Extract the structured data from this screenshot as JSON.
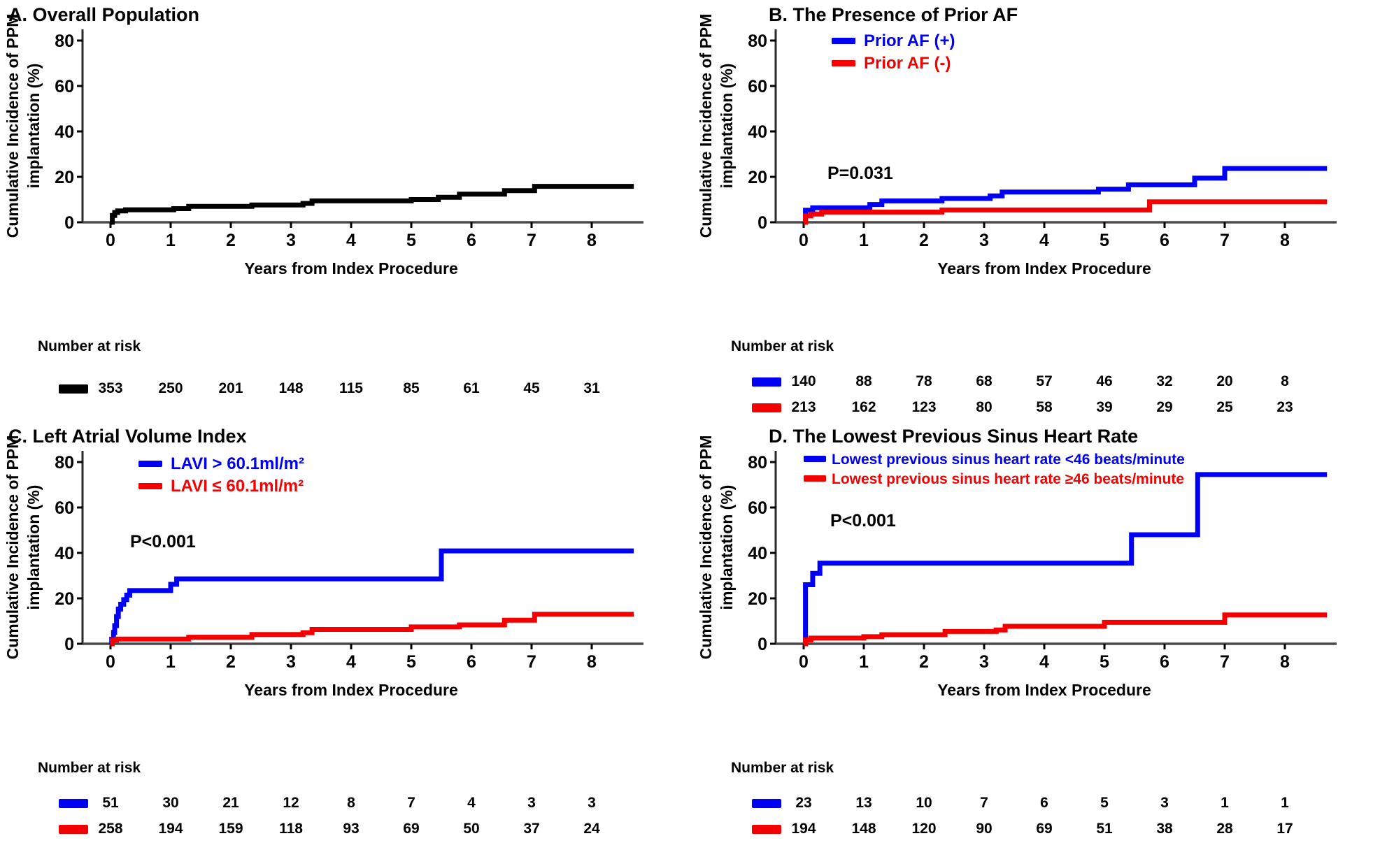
{
  "figure": {
    "ylabel_line1": "Cumulative Incidence of PPM",
    "ylabel_line2": "implantation (%)",
    "xlabel": "Years from Index Procedure",
    "risk_header": "Number at risk",
    "colors": {
      "blue": "#0000F5",
      "red": "#F50000",
      "black": "#000000"
    }
  },
  "chart_data": [
    {
      "type": "line",
      "title": "A. Overall Population",
      "xlabel": "Years from Index Procedure",
      "ylabel": "Cumulative Incidence of PPM implantation (%)",
      "xlim": [
        0,
        8.7
      ],
      "ylim": [
        0,
        80
      ],
      "xticks": [
        0,
        1,
        2,
        3,
        4,
        5,
        6,
        7,
        8
      ],
      "yticks": [
        0,
        20,
        40,
        60,
        80
      ],
      "grid": false,
      "legend": [],
      "pvalue": "",
      "series": [
        {
          "name": "Overall population",
          "color": "#000000",
          "end": 8.7,
          "risk": [
            353,
            250,
            201,
            148,
            115,
            85,
            61,
            45,
            31
          ],
          "steps": [
            [
              0,
              0
            ],
            [
              0.03,
              3
            ],
            [
              0.07,
              4.3
            ],
            [
              0.12,
              5
            ],
            [
              0.25,
              5.5
            ],
            [
              1.05,
              6
            ],
            [
              1.3,
              7
            ],
            [
              2.35,
              7.6
            ],
            [
              3.2,
              8.3
            ],
            [
              3.35,
              9.4
            ],
            [
              5.0,
              10
            ],
            [
              5.45,
              11
            ],
            [
              5.8,
              12.4
            ],
            [
              6.55,
              13.9
            ],
            [
              7.05,
              15.8
            ]
          ]
        }
      ]
    },
    {
      "type": "line",
      "title": "B. The Presence of Prior AF",
      "xlabel": "Years from Index Procedure",
      "ylabel": "Cumulative Incidence of PPM implantation (%)",
      "xlim": [
        0,
        8.7
      ],
      "ylim": [
        0,
        80
      ],
      "xticks": [
        0,
        1,
        2,
        3,
        4,
        5,
        6,
        7,
        8
      ],
      "yticks": [
        0,
        20,
        40,
        60,
        80
      ],
      "grid": false,
      "legend": [
        {
          "label": "Prior AF (+)",
          "color": "#0000F5"
        },
        {
          "label": "Prior AF (-)",
          "color": "#F50000"
        }
      ],
      "pvalue": "P=0.031",
      "series": [
        {
          "name": "Prior AF (+)",
          "color": "#0000F5",
          "end": 8.7,
          "risk": [
            140,
            88,
            78,
            68,
            57,
            46,
            32,
            20,
            8
          ],
          "steps": [
            [
              0,
              0
            ],
            [
              0.03,
              5.3
            ],
            [
              0.15,
              6.4
            ],
            [
              1.1,
              7.8
            ],
            [
              1.3,
              9.4
            ],
            [
              2.3,
              10.5
            ],
            [
              3.1,
              11.6
            ],
            [
              3.3,
              13.3
            ],
            [
              4.9,
              14.6
            ],
            [
              5.4,
              16.5
            ],
            [
              6.5,
              19.4
            ],
            [
              7.0,
              23.7
            ]
          ]
        },
        {
          "name": "Prior AF (-)",
          "color": "#F50000",
          "end": 8.7,
          "risk": [
            213,
            162,
            123,
            80,
            58,
            39,
            29,
            25,
            23
          ],
          "steps": [
            [
              0,
              0
            ],
            [
              0.03,
              2.8
            ],
            [
              0.12,
              3.6
            ],
            [
              0.3,
              4.5
            ],
            [
              2.3,
              5.4
            ],
            [
              5.75,
              9.0
            ]
          ]
        }
      ]
    },
    {
      "type": "line",
      "title": "C. Left Atrial Volume Index",
      "xlabel": "Years from Index Procedure",
      "ylabel": "Cumulative Incidence of PPM implantation (%)",
      "xlim": [
        0,
        8.7
      ],
      "ylim": [
        0,
        80
      ],
      "xticks": [
        0,
        1,
        2,
        3,
        4,
        5,
        6,
        7,
        8
      ],
      "yticks": [
        0,
        20,
        40,
        60,
        80
      ],
      "grid": false,
      "legend": [
        {
          "label": "LAVI > 60.1ml/m²",
          "color": "#0000F5"
        },
        {
          "label": "LAVI ≤ 60.1ml/m²",
          "color": "#F50000"
        }
      ],
      "pvalue": "P<0.001",
      "series": [
        {
          "name": "LAVI > 60.1ml/m²",
          "color": "#0000F5",
          "end": 8.7,
          "risk": [
            51,
            30,
            21,
            12,
            8,
            7,
            4,
            3,
            3
          ],
          "steps": [
            [
              0,
              0
            ],
            [
              0.02,
              2
            ],
            [
              0.05,
              5
            ],
            [
              0.07,
              8
            ],
            [
              0.1,
              12
            ],
            [
              0.13,
              15.3
            ],
            [
              0.17,
              17.4
            ],
            [
              0.22,
              19.4
            ],
            [
              0.27,
              21.4
            ],
            [
              0.32,
              23.4
            ],
            [
              1.0,
              26.2
            ],
            [
              1.1,
              28.6
            ],
            [
              5.5,
              40.9
            ]
          ]
        },
        {
          "name": "LAVI ≤ 60.1ml/m²",
          "color": "#F50000",
          "end": 8.7,
          "risk": [
            258,
            194,
            159,
            118,
            93,
            69,
            50,
            37,
            24
          ],
          "steps": [
            [
              0,
              0
            ],
            [
              0.03,
              1.6
            ],
            [
              0.1,
              2.1
            ],
            [
              1.3,
              2.9
            ],
            [
              2.35,
              4.1
            ],
            [
              3.2,
              4.9
            ],
            [
              3.35,
              6.3
            ],
            [
              5.0,
              7.4
            ],
            [
              5.8,
              8.3
            ],
            [
              6.55,
              10.4
            ],
            [
              7.05,
              13.0
            ]
          ]
        }
      ]
    },
    {
      "type": "line",
      "title": "D. The Lowest Previous Sinus Heart Rate",
      "xlabel": "Years from Index Procedure",
      "ylabel": "Cumulative Incidence of PPM implantation (%)",
      "xlim": [
        0,
        8.7
      ],
      "ylim": [
        0,
        80
      ],
      "xticks": [
        0,
        1,
        2,
        3,
        4,
        5,
        6,
        7,
        8
      ],
      "yticks": [
        0,
        20,
        40,
        60,
        80
      ],
      "grid": false,
      "legend": [
        {
          "label": "Lowest previous sinus heart rate <46 beats/minute",
          "color": "#0000F5"
        },
        {
          "label": "Lowest previous sinus heart rate ≥46 beats/minute",
          "color": "#F50000"
        }
      ],
      "pvalue": "P<0.001",
      "series": [
        {
          "name": "Lowest previous sinus heart rate <46 beats/minute",
          "color": "#0000F5",
          "end": 8.7,
          "risk": [
            23,
            13,
            10,
            7,
            6,
            5,
            3,
            1,
            1
          ],
          "steps": [
            [
              0,
              0
            ],
            [
              0.03,
              26
            ],
            [
              0.15,
              31
            ],
            [
              0.27,
              35.5
            ],
            [
              5.45,
              48
            ],
            [
              6.55,
              74.5
            ]
          ]
        },
        {
          "name": "Lowest previous sinus heart rate ≥46 beats/minute",
          "color": "#F50000",
          "end": 8.7,
          "risk": [
            194,
            148,
            120,
            90,
            69,
            51,
            38,
            28,
            17
          ],
          "steps": [
            [
              0,
              0
            ],
            [
              0.03,
              1.7
            ],
            [
              0.12,
              2.5
            ],
            [
              1.0,
              3.1
            ],
            [
              1.3,
              4.0
            ],
            [
              2.35,
              5.4
            ],
            [
              3.2,
              6.1
            ],
            [
              3.35,
              7.7
            ],
            [
              5.0,
              9.4
            ],
            [
              7.0,
              12.7
            ]
          ]
        }
      ]
    }
  ]
}
